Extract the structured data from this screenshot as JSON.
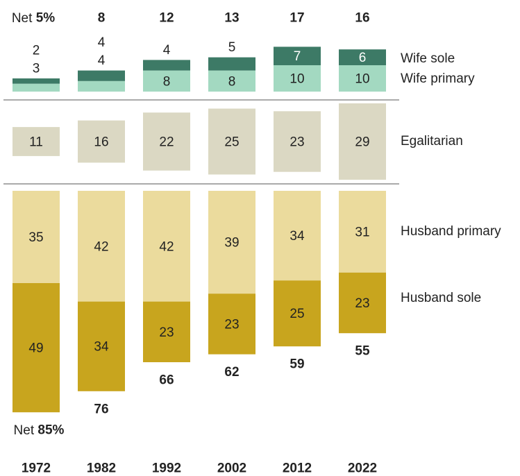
{
  "chart_data": {
    "type": "bar",
    "categories": [
      "1972",
      "1982",
      "1992",
      "2002",
      "2012",
      "2022"
    ],
    "series": [
      {
        "name": "Wife sole",
        "values": [
          2,
          4,
          4,
          5,
          7,
          6
        ],
        "color": "#3d7a66"
      },
      {
        "name": "Wife primary",
        "values": [
          3,
          4,
          8,
          8,
          10,
          10
        ],
        "color": "#a3d9c1"
      },
      {
        "name": "Egalitarian",
        "values": [
          11,
          16,
          22,
          25,
          23,
          29
        ],
        "color": "#dbd8c3"
      },
      {
        "name": "Husband primary",
        "values": [
          35,
          42,
          42,
          39,
          34,
          31
        ],
        "color": "#ebdb9d"
      },
      {
        "name": "Husband sole",
        "values": [
          49,
          34,
          23,
          23,
          25,
          23
        ],
        "color": "#c8a51e"
      }
    ],
    "net_wife": [
      "5%",
      "8",
      "12",
      "13",
      "17",
      "16"
    ],
    "net_husband": [
      "85%",
      "76",
      "66",
      "62",
      "59",
      "55"
    ],
    "net_prefix": "Net",
    "grid": false,
    "legend": "right"
  }
}
